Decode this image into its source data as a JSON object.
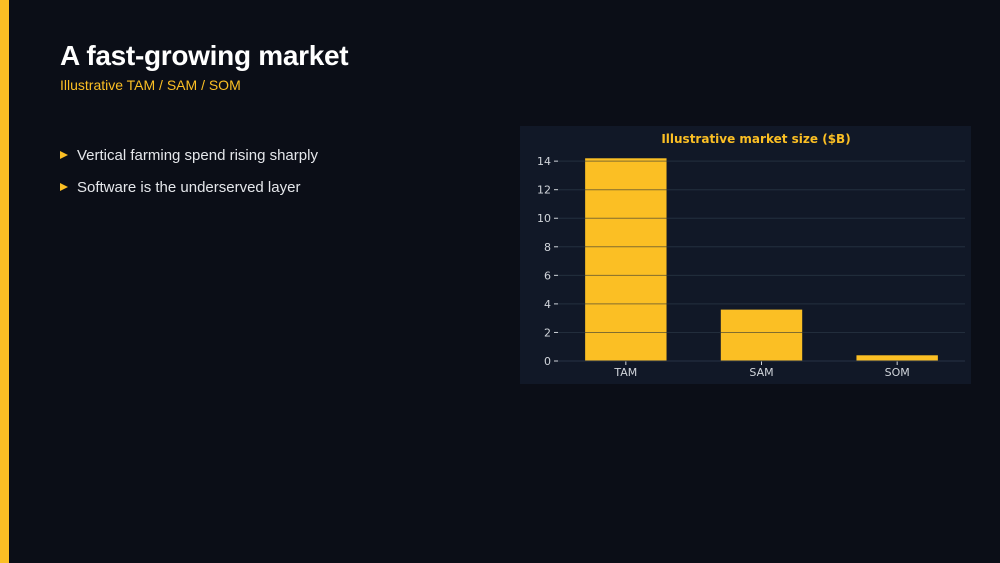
{
  "slide": {
    "title": "A fast-growing market",
    "subtitle": "Illustrative TAM / SAM / SOM",
    "bullets": [
      "Vertical farming spend rising sharply",
      "Software is the underserved layer"
    ]
  },
  "colors": {
    "background": "#0b0e17",
    "accent": "#fbbf24",
    "panel": "#111827",
    "grid": "#273244",
    "tick_text": "#d1d5db"
  },
  "chart_data": {
    "type": "bar",
    "title": "Illustrative market size ($B)",
    "categories": [
      "TAM",
      "SAM",
      "SOM"
    ],
    "values": [
      14.2,
      3.6,
      0.4
    ],
    "ylim": [
      0,
      14.5
    ],
    "yticks": [
      0,
      2,
      4,
      6,
      8,
      10,
      12,
      14
    ],
    "xlabel": "",
    "ylabel": "",
    "grid": true,
    "legend": "none"
  }
}
